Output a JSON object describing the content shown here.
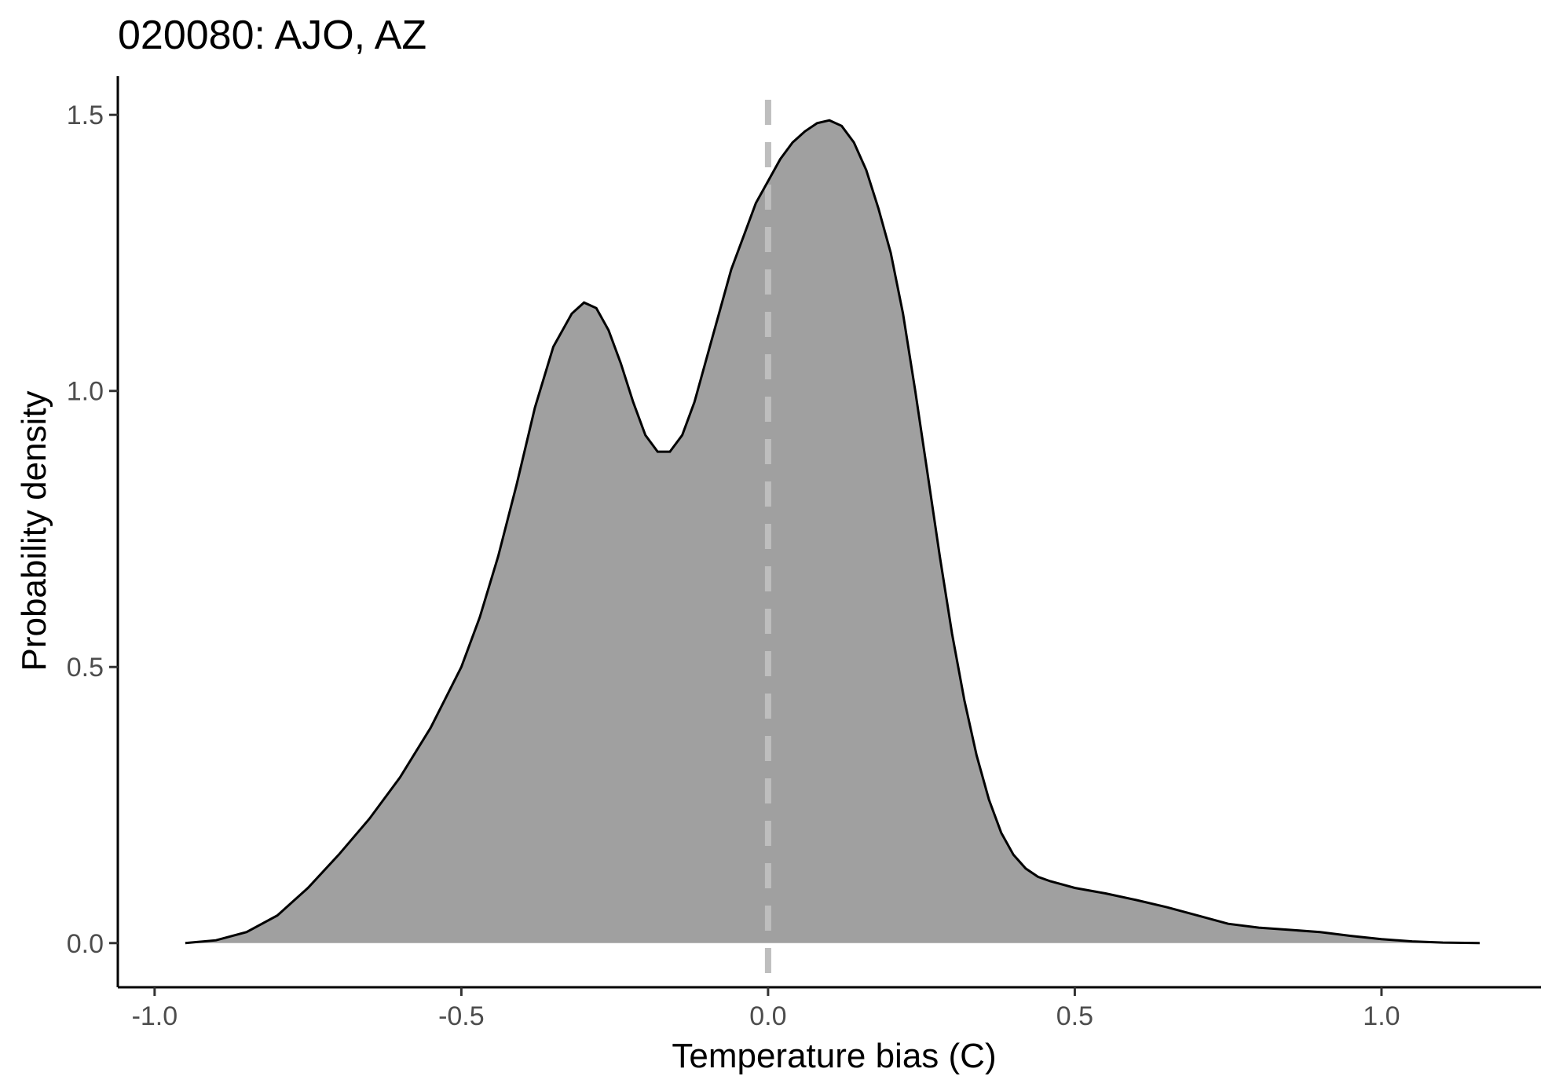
{
  "chart_data": {
    "type": "area",
    "title": "020080: AJO, AZ",
    "xlabel": "Temperature bias (C)",
    "ylabel": "Probability density",
    "xlim": [
      -1.06,
      1.26
    ],
    "ylim": [
      -0.08,
      1.57
    ],
    "x_ticks": [
      -1.0,
      -0.5,
      0.0,
      0.5,
      1.0
    ],
    "x_tick_labels": [
      "-1.0",
      "-0.5",
      "0.0",
      "0.5",
      "1.0"
    ],
    "y_ticks": [
      0.0,
      0.5,
      1.0,
      1.5
    ],
    "y_tick_labels": [
      "0.0",
      "0.5",
      "1.0",
      "1.5"
    ],
    "reference_line": {
      "x": 0.0,
      "style": "dashed",
      "color": "#bebebe"
    },
    "grid": false,
    "fill_color": "#a0a0a0",
    "line_color": "#000000",
    "series": [
      {
        "x": [
          -0.95,
          -0.9,
          -0.85,
          -0.8,
          -0.75,
          -0.7,
          -0.65,
          -0.6,
          -0.55,
          -0.5,
          -0.47,
          -0.44,
          -0.41,
          -0.38,
          -0.35,
          -0.32,
          -0.3,
          -0.28,
          -0.26,
          -0.24,
          -0.22,
          -0.2,
          -0.18,
          -0.16,
          -0.14,
          -0.12,
          -0.1,
          -0.08,
          -0.06,
          -0.04,
          -0.02,
          0.0,
          0.02,
          0.04,
          0.06,
          0.08,
          0.1,
          0.12,
          0.14,
          0.16,
          0.18,
          0.2,
          0.22,
          0.24,
          0.26,
          0.28,
          0.3,
          0.32,
          0.34,
          0.36,
          0.38,
          0.4,
          0.42,
          0.44,
          0.46,
          0.48,
          0.5,
          0.55,
          0.6,
          0.65,
          0.7,
          0.75,
          0.8,
          0.85,
          0.9,
          0.95,
          1.0,
          1.05,
          1.1,
          1.16
        ],
        "y": [
          0.0,
          0.005,
          0.02,
          0.05,
          0.1,
          0.16,
          0.225,
          0.3,
          0.39,
          0.5,
          0.59,
          0.7,
          0.83,
          0.97,
          1.08,
          1.14,
          1.16,
          1.15,
          1.11,
          1.05,
          0.98,
          0.92,
          0.89,
          0.89,
          0.92,
          0.98,
          1.06,
          1.14,
          1.22,
          1.28,
          1.34,
          1.38,
          1.42,
          1.45,
          1.47,
          1.485,
          1.49,
          1.48,
          1.45,
          1.4,
          1.33,
          1.25,
          1.14,
          1.0,
          0.85,
          0.7,
          0.56,
          0.44,
          0.34,
          0.26,
          0.2,
          0.16,
          0.135,
          0.12,
          0.112,
          0.106,
          0.1,
          0.09,
          0.078,
          0.065,
          0.05,
          0.035,
          0.028,
          0.024,
          0.02,
          0.013,
          0.007,
          0.003,
          0.001,
          0.0
        ]
      }
    ]
  }
}
